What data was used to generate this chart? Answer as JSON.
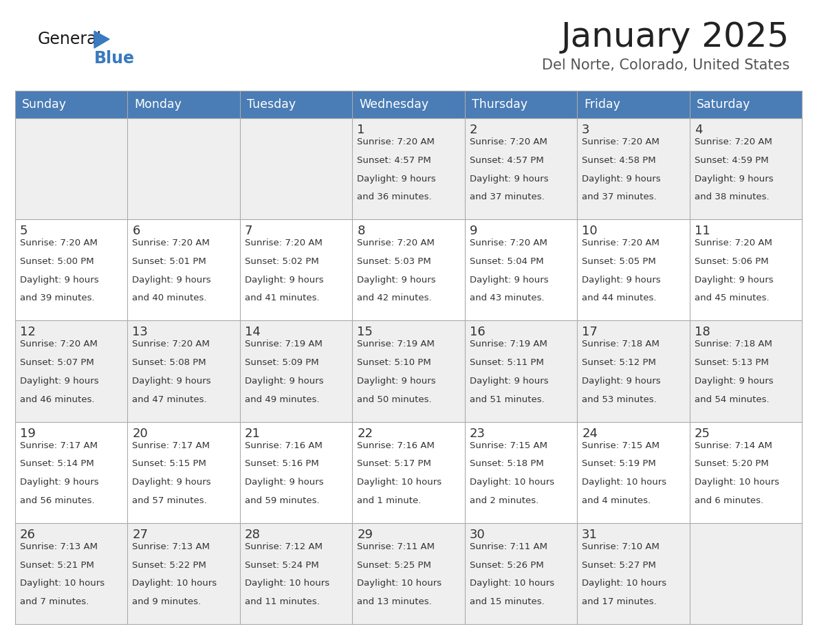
{
  "title": "January 2025",
  "subtitle": "Del Norte, Colorado, United States",
  "days_of_week": [
    "Sunday",
    "Monday",
    "Tuesday",
    "Wednesday",
    "Thursday",
    "Friday",
    "Saturday"
  ],
  "header_bg": "#4a7cb5",
  "header_text": "#ffffff",
  "row_bg_odd": "#efefef",
  "row_bg_even": "#ffffff",
  "text_color": "#333333",
  "title_color": "#222222",
  "subtitle_color": "#555555",
  "grid_color": "#aaaaaa",
  "calendar_data": [
    [
      {
        "day": "",
        "sunrise": "",
        "sunset": "",
        "daylight": ""
      },
      {
        "day": "",
        "sunrise": "",
        "sunset": "",
        "daylight": ""
      },
      {
        "day": "",
        "sunrise": "",
        "sunset": "",
        "daylight": ""
      },
      {
        "day": "1",
        "sunrise": "7:20 AM",
        "sunset": "4:57 PM",
        "daylight_line1": "Daylight: 9 hours",
        "daylight_line2": "and 36 minutes."
      },
      {
        "day": "2",
        "sunrise": "7:20 AM",
        "sunset": "4:57 PM",
        "daylight_line1": "Daylight: 9 hours",
        "daylight_line2": "and 37 minutes."
      },
      {
        "day": "3",
        "sunrise": "7:20 AM",
        "sunset": "4:58 PM",
        "daylight_line1": "Daylight: 9 hours",
        "daylight_line2": "and 37 minutes."
      },
      {
        "day": "4",
        "sunrise": "7:20 AM",
        "sunset": "4:59 PM",
        "daylight_line1": "Daylight: 9 hours",
        "daylight_line2": "and 38 minutes."
      }
    ],
    [
      {
        "day": "5",
        "sunrise": "7:20 AM",
        "sunset": "5:00 PM",
        "daylight_line1": "Daylight: 9 hours",
        "daylight_line2": "and 39 minutes."
      },
      {
        "day": "6",
        "sunrise": "7:20 AM",
        "sunset": "5:01 PM",
        "daylight_line1": "Daylight: 9 hours",
        "daylight_line2": "and 40 minutes."
      },
      {
        "day": "7",
        "sunrise": "7:20 AM",
        "sunset": "5:02 PM",
        "daylight_line1": "Daylight: 9 hours",
        "daylight_line2": "and 41 minutes."
      },
      {
        "day": "8",
        "sunrise": "7:20 AM",
        "sunset": "5:03 PM",
        "daylight_line1": "Daylight: 9 hours",
        "daylight_line2": "and 42 minutes."
      },
      {
        "day": "9",
        "sunrise": "7:20 AM",
        "sunset": "5:04 PM",
        "daylight_line1": "Daylight: 9 hours",
        "daylight_line2": "and 43 minutes."
      },
      {
        "day": "10",
        "sunrise": "7:20 AM",
        "sunset": "5:05 PM",
        "daylight_line1": "Daylight: 9 hours",
        "daylight_line2": "and 44 minutes."
      },
      {
        "day": "11",
        "sunrise": "7:20 AM",
        "sunset": "5:06 PM",
        "daylight_line1": "Daylight: 9 hours",
        "daylight_line2": "and 45 minutes."
      }
    ],
    [
      {
        "day": "12",
        "sunrise": "7:20 AM",
        "sunset": "5:07 PM",
        "daylight_line1": "Daylight: 9 hours",
        "daylight_line2": "and 46 minutes."
      },
      {
        "day": "13",
        "sunrise": "7:20 AM",
        "sunset": "5:08 PM",
        "daylight_line1": "Daylight: 9 hours",
        "daylight_line2": "and 47 minutes."
      },
      {
        "day": "14",
        "sunrise": "7:19 AM",
        "sunset": "5:09 PM",
        "daylight_line1": "Daylight: 9 hours",
        "daylight_line2": "and 49 minutes."
      },
      {
        "day": "15",
        "sunrise": "7:19 AM",
        "sunset": "5:10 PM",
        "daylight_line1": "Daylight: 9 hours",
        "daylight_line2": "and 50 minutes."
      },
      {
        "day": "16",
        "sunrise": "7:19 AM",
        "sunset": "5:11 PM",
        "daylight_line1": "Daylight: 9 hours",
        "daylight_line2": "and 51 minutes."
      },
      {
        "day": "17",
        "sunrise": "7:18 AM",
        "sunset": "5:12 PM",
        "daylight_line1": "Daylight: 9 hours",
        "daylight_line2": "and 53 minutes."
      },
      {
        "day": "18",
        "sunrise": "7:18 AM",
        "sunset": "5:13 PM",
        "daylight_line1": "Daylight: 9 hours",
        "daylight_line2": "and 54 minutes."
      }
    ],
    [
      {
        "day": "19",
        "sunrise": "7:17 AM",
        "sunset": "5:14 PM",
        "daylight_line1": "Daylight: 9 hours",
        "daylight_line2": "and 56 minutes."
      },
      {
        "day": "20",
        "sunrise": "7:17 AM",
        "sunset": "5:15 PM",
        "daylight_line1": "Daylight: 9 hours",
        "daylight_line2": "and 57 minutes."
      },
      {
        "day": "21",
        "sunrise": "7:16 AM",
        "sunset": "5:16 PM",
        "daylight_line1": "Daylight: 9 hours",
        "daylight_line2": "and 59 minutes."
      },
      {
        "day": "22",
        "sunrise": "7:16 AM",
        "sunset": "5:17 PM",
        "daylight_line1": "Daylight: 10 hours",
        "daylight_line2": "and 1 minute."
      },
      {
        "day": "23",
        "sunrise": "7:15 AM",
        "sunset": "5:18 PM",
        "daylight_line1": "Daylight: 10 hours",
        "daylight_line2": "and 2 minutes."
      },
      {
        "day": "24",
        "sunrise": "7:15 AM",
        "sunset": "5:19 PM",
        "daylight_line1": "Daylight: 10 hours",
        "daylight_line2": "and 4 minutes."
      },
      {
        "day": "25",
        "sunrise": "7:14 AM",
        "sunset": "5:20 PM",
        "daylight_line1": "Daylight: 10 hours",
        "daylight_line2": "and 6 minutes."
      }
    ],
    [
      {
        "day": "26",
        "sunrise": "7:13 AM",
        "sunset": "5:21 PM",
        "daylight_line1": "Daylight: 10 hours",
        "daylight_line2": "and 7 minutes."
      },
      {
        "day": "27",
        "sunrise": "7:13 AM",
        "sunset": "5:22 PM",
        "daylight_line1": "Daylight: 10 hours",
        "daylight_line2": "and 9 minutes."
      },
      {
        "day": "28",
        "sunrise": "7:12 AM",
        "sunset": "5:24 PM",
        "daylight_line1": "Daylight: 10 hours",
        "daylight_line2": "and 11 minutes."
      },
      {
        "day": "29",
        "sunrise": "7:11 AM",
        "sunset": "5:25 PM",
        "daylight_line1": "Daylight: 10 hours",
        "daylight_line2": "and 13 minutes."
      },
      {
        "day": "30",
        "sunrise": "7:11 AM",
        "sunset": "5:26 PM",
        "daylight_line1": "Daylight: 10 hours",
        "daylight_line2": "and 15 minutes."
      },
      {
        "day": "31",
        "sunrise": "7:10 AM",
        "sunset": "5:27 PM",
        "daylight_line1": "Daylight: 10 hours",
        "daylight_line2": "and 17 minutes."
      },
      {
        "day": "",
        "sunrise": "",
        "sunset": "",
        "daylight_line1": "",
        "daylight_line2": ""
      }
    ]
  ]
}
